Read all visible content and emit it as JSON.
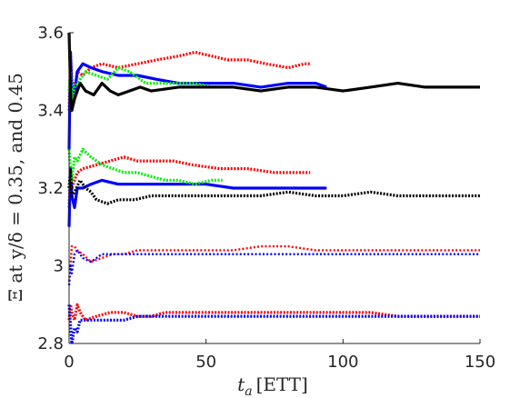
{
  "chart_data": {
    "type": "line",
    "xlabel_var": "t",
    "xlabel_sub": "a",
    "xlabel_unit": "[ETT]",
    "ylabel": "Ξ at y/δ = 0.35, and 0.45",
    "xlim": [
      0,
      150
    ],
    "ylim": [
      2.8,
      3.6
    ],
    "xticks": [
      "0",
      "50",
      "100",
      "150"
    ],
    "yticks": [
      "2.8",
      "3",
      "3.2",
      "3.4",
      "3.6"
    ],
    "grid": false,
    "legend": "none",
    "series": [
      {
        "group": "upper",
        "color": "#ff0000",
        "style": "dotted-thick",
        "points": [
          [
            0,
            3.4
          ],
          [
            0.5,
            3.55
          ],
          [
            1,
            3.48
          ],
          [
            2,
            3.45
          ],
          [
            3,
            3.5
          ],
          [
            5,
            3.49
          ],
          [
            8,
            3.51
          ],
          [
            12,
            3.52
          ],
          [
            18,
            3.51
          ],
          [
            25,
            3.52
          ],
          [
            32,
            3.53
          ],
          [
            40,
            3.54
          ],
          [
            46,
            3.55
          ],
          [
            52,
            3.54
          ],
          [
            58,
            3.53
          ],
          [
            65,
            3.53
          ],
          [
            72,
            3.52
          ],
          [
            80,
            3.51
          ],
          [
            86,
            3.52
          ],
          [
            88,
            3.52
          ]
        ]
      },
      {
        "group": "upper",
        "color": "#0000ff",
        "style": "solid-thick",
        "points": [
          [
            0,
            3.3
          ],
          [
            0.5,
            3.55
          ],
          [
            1,
            3.45
          ],
          [
            2,
            3.44
          ],
          [
            3,
            3.5
          ],
          [
            5,
            3.52
          ],
          [
            8,
            3.51
          ],
          [
            12,
            3.5
          ],
          [
            18,
            3.49
          ],
          [
            25,
            3.49
          ],
          [
            32,
            3.48
          ],
          [
            40,
            3.47
          ],
          [
            50,
            3.47
          ],
          [
            60,
            3.47
          ],
          [
            70,
            3.46
          ],
          [
            80,
            3.47
          ],
          [
            90,
            3.47
          ],
          [
            94,
            3.46
          ]
        ]
      },
      {
        "group": "upper",
        "color": "#00ee00",
        "style": "dotted-thick",
        "points": [
          [
            0,
            3.45
          ],
          [
            0.5,
            3.5
          ],
          [
            1,
            3.42
          ],
          [
            2,
            3.46
          ],
          [
            4,
            3.48
          ],
          [
            6,
            3.5
          ],
          [
            10,
            3.49
          ],
          [
            14,
            3.48
          ],
          [
            18,
            3.51
          ],
          [
            22,
            3.5
          ],
          [
            28,
            3.47
          ],
          [
            34,
            3.47
          ],
          [
            40,
            3.47
          ],
          [
            46,
            3.47
          ],
          [
            52,
            3.46
          ],
          [
            56,
            3.46
          ]
        ]
      },
      {
        "group": "upper",
        "color": "#000000",
        "style": "solid-thick",
        "points": [
          [
            0,
            3.6
          ],
          [
            0.5,
            3.45
          ],
          [
            1,
            3.4
          ],
          [
            2,
            3.43
          ],
          [
            4,
            3.47
          ],
          [
            6,
            3.45
          ],
          [
            9,
            3.44
          ],
          [
            12,
            3.47
          ],
          [
            15,
            3.45
          ],
          [
            18,
            3.44
          ],
          [
            22,
            3.45
          ],
          [
            26,
            3.46
          ],
          [
            30,
            3.45
          ],
          [
            40,
            3.46
          ],
          [
            50,
            3.46
          ],
          [
            60,
            3.46
          ],
          [
            70,
            3.45
          ],
          [
            80,
            3.46
          ],
          [
            90,
            3.46
          ],
          [
            100,
            3.45
          ],
          [
            110,
            3.46
          ],
          [
            120,
            3.47
          ],
          [
            130,
            3.46
          ],
          [
            140,
            3.46
          ],
          [
            150,
            3.46
          ]
        ]
      },
      {
        "group": "middle",
        "color": "#ff0000",
        "style": "dotted-thick",
        "points": [
          [
            0,
            3.15
          ],
          [
            0.5,
            3.25
          ],
          [
            1,
            3.2
          ],
          [
            2,
            3.22
          ],
          [
            3,
            3.24
          ],
          [
            5,
            3.25
          ],
          [
            10,
            3.26
          ],
          [
            15,
            3.27
          ],
          [
            20,
            3.28
          ],
          [
            25,
            3.27
          ],
          [
            30,
            3.27
          ],
          [
            38,
            3.27
          ],
          [
            45,
            3.26
          ],
          [
            55,
            3.25
          ],
          [
            65,
            3.25
          ],
          [
            75,
            3.24
          ],
          [
            85,
            3.24
          ],
          [
            88,
            3.24
          ]
        ]
      },
      {
        "group": "middle",
        "color": "#0000ff",
        "style": "solid-thick",
        "points": [
          [
            0,
            3.1
          ],
          [
            0.5,
            3.25
          ],
          [
            1,
            3.18
          ],
          [
            2,
            3.15
          ],
          [
            3,
            3.2
          ],
          [
            5,
            3.2
          ],
          [
            8,
            3.21
          ],
          [
            12,
            3.22
          ],
          [
            18,
            3.21
          ],
          [
            25,
            3.21
          ],
          [
            32,
            3.21
          ],
          [
            40,
            3.21
          ],
          [
            50,
            3.21
          ],
          [
            60,
            3.2
          ],
          [
            70,
            3.2
          ],
          [
            80,
            3.2
          ],
          [
            90,
            3.2
          ],
          [
            94,
            3.2
          ]
        ]
      },
      {
        "group": "middle",
        "color": "#00ee00",
        "style": "dotted-thick",
        "points": [
          [
            0,
            3.3
          ],
          [
            0.5,
            3.25
          ],
          [
            1,
            3.22
          ],
          [
            2,
            3.28
          ],
          [
            3,
            3.27
          ],
          [
            5,
            3.3
          ],
          [
            8,
            3.28
          ],
          [
            12,
            3.26
          ],
          [
            16,
            3.25
          ],
          [
            20,
            3.24
          ],
          [
            25,
            3.24
          ],
          [
            30,
            3.23
          ],
          [
            35,
            3.22
          ],
          [
            40,
            3.22
          ],
          [
            46,
            3.21
          ],
          [
            52,
            3.22
          ],
          [
            56,
            3.22
          ]
        ]
      },
      {
        "group": "middle",
        "color": "#000000",
        "style": "dotted-thick",
        "points": [
          [
            0,
            3.2
          ],
          [
            0.5,
            3.25
          ],
          [
            1,
            3.18
          ],
          [
            2,
            3.19
          ],
          [
            4,
            3.22
          ],
          [
            6,
            3.2
          ],
          [
            8,
            3.19
          ],
          [
            10,
            3.17
          ],
          [
            14,
            3.16
          ],
          [
            18,
            3.17
          ],
          [
            24,
            3.17
          ],
          [
            30,
            3.18
          ],
          [
            40,
            3.18
          ],
          [
            50,
            3.18
          ],
          [
            60,
            3.18
          ],
          [
            70,
            3.18
          ],
          [
            80,
            3.19
          ],
          [
            90,
            3.18
          ],
          [
            100,
            3.18
          ],
          [
            110,
            3.19
          ],
          [
            120,
            3.18
          ],
          [
            130,
            3.18
          ],
          [
            140,
            3.18
          ],
          [
            150,
            3.18
          ]
        ]
      },
      {
        "group": "lower",
        "color": "#ff0000",
        "style": "dotted",
        "points": [
          [
            0,
            2.96
          ],
          [
            0.5,
            3.0
          ],
          [
            1,
            3.05
          ],
          [
            2,
            3.05
          ],
          [
            3,
            3.04
          ],
          [
            5,
            3.03
          ],
          [
            8,
            3.01
          ],
          [
            12,
            3.02
          ],
          [
            16,
            3.03
          ],
          [
            20,
            3.03
          ],
          [
            25,
            3.04
          ],
          [
            30,
            3.04
          ],
          [
            40,
            3.04
          ],
          [
            50,
            3.04
          ],
          [
            60,
            3.04
          ],
          [
            70,
            3.05
          ],
          [
            80,
            3.05
          ],
          [
            90,
            3.04
          ],
          [
            100,
            3.04
          ],
          [
            110,
            3.04
          ],
          [
            120,
            3.04
          ],
          [
            130,
            3.04
          ],
          [
            140,
            3.04
          ],
          [
            150,
            3.04
          ]
        ]
      },
      {
        "group": "lower",
        "color": "#0000ff",
        "style": "dotted",
        "points": [
          [
            0,
            2.95
          ],
          [
            0.5,
            3.0
          ],
          [
            1,
            2.98
          ],
          [
            2,
            3.03
          ],
          [
            3,
            3.04
          ],
          [
            5,
            3.02
          ],
          [
            8,
            3.01
          ],
          [
            12,
            3.03
          ],
          [
            16,
            3.03
          ],
          [
            20,
            3.03
          ],
          [
            25,
            3.03
          ],
          [
            30,
            3.03
          ],
          [
            40,
            3.03
          ],
          [
            50,
            3.03
          ],
          [
            60,
            3.03
          ],
          [
            70,
            3.03
          ],
          [
            80,
            3.03
          ],
          [
            90,
            3.03
          ],
          [
            100,
            3.03
          ],
          [
            110,
            3.03
          ],
          [
            120,
            3.03
          ],
          [
            130,
            3.03
          ],
          [
            140,
            3.03
          ],
          [
            150,
            3.03
          ]
        ]
      },
      {
        "group": "bottom",
        "color": "#ff0000",
        "style": "dotted-thick",
        "points": [
          [
            0,
            2.86
          ],
          [
            0.5,
            2.9
          ],
          [
            1,
            2.88
          ],
          [
            2,
            2.86
          ],
          [
            3,
            2.9
          ],
          [
            4,
            2.88
          ],
          [
            6,
            2.86
          ],
          [
            10,
            2.87
          ],
          [
            15,
            2.88
          ],
          [
            20,
            2.88
          ],
          [
            25,
            2.87
          ],
          [
            30,
            2.87
          ],
          [
            35,
            2.88
          ],
          [
            40,
            2.88
          ],
          [
            50,
            2.88
          ],
          [
            60,
            2.88
          ],
          [
            70,
            2.88
          ],
          [
            80,
            2.88
          ],
          [
            90,
            2.88
          ],
          [
            100,
            2.88
          ],
          [
            110,
            2.88
          ],
          [
            120,
            2.87
          ],
          [
            130,
            2.87
          ],
          [
            140,
            2.87
          ],
          [
            150,
            2.87
          ]
        ]
      },
      {
        "group": "bottom",
        "color": "#0000ff",
        "style": "dotted-thick",
        "points": [
          [
            0,
            2.9
          ],
          [
            0.5,
            2.85
          ],
          [
            1,
            2.8
          ],
          [
            2,
            2.84
          ],
          [
            3,
            2.83
          ],
          [
            4,
            2.86
          ],
          [
            6,
            2.86
          ],
          [
            10,
            2.86
          ],
          [
            15,
            2.86
          ],
          [
            20,
            2.86
          ],
          [
            25,
            2.87
          ],
          [
            30,
            2.87
          ],
          [
            40,
            2.87
          ],
          [
            50,
            2.87
          ],
          [
            60,
            2.87
          ],
          [
            70,
            2.87
          ],
          [
            80,
            2.87
          ],
          [
            90,
            2.87
          ],
          [
            100,
            2.87
          ],
          [
            110,
            2.87
          ],
          [
            120,
            2.87
          ],
          [
            130,
            2.87
          ],
          [
            140,
            2.87
          ],
          [
            150,
            2.87
          ]
        ]
      }
    ]
  }
}
